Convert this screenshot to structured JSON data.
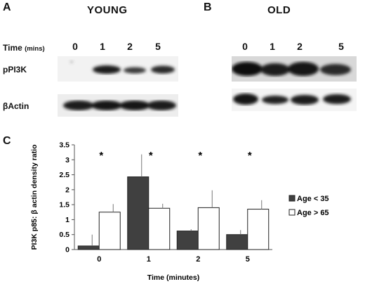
{
  "panels": {
    "a": {
      "letter": "A",
      "title": "YOUNG"
    },
    "b": {
      "letter": "B",
      "title": "OLD"
    },
    "c": {
      "letter": "C"
    }
  },
  "blot": {
    "time_label": "Time",
    "time_unit": "(mins)",
    "lanes": [
      "0",
      "1",
      "2",
      "5"
    ],
    "row1_label": "pPI3K",
    "row2_label": "βActin"
  },
  "chart_data": {
    "type": "bar",
    "categories": [
      "0",
      "1",
      "2",
      "5"
    ],
    "xlabel": "Time (minutes)",
    "ylabel": "PI3K p85: β actin density ratio",
    "ylim": [
      0,
      3.5
    ],
    "yticks": [
      0,
      0.5,
      1,
      1.5,
      2,
      2.5,
      3,
      3.5
    ],
    "grid": false,
    "legend": "right",
    "significance_marker": "*",
    "series": [
      {
        "name": "Age < 35",
        "color": "#404040",
        "values": [
          0.12,
          2.43,
          0.62,
          0.5
        ],
        "errors": [
          0.38,
          0.75,
          0.06,
          0.15
        ]
      },
      {
        "name": "Age > 65",
        "color": "#ffffff",
        "values": [
          1.25,
          1.38,
          1.4,
          1.35
        ],
        "errors": [
          0.27,
          0.15,
          0.58,
          0.3
        ]
      }
    ]
  }
}
